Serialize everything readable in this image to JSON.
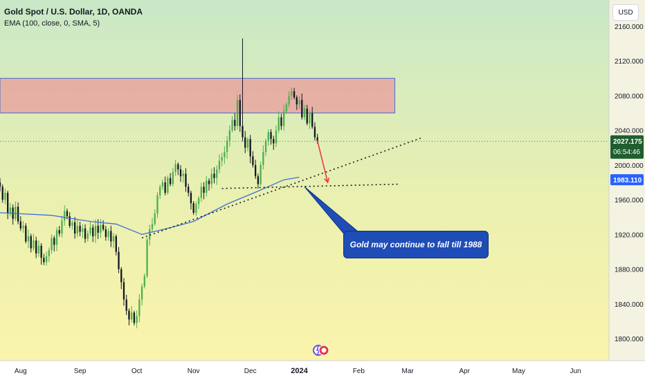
{
  "header": {
    "symbol_title": "Gold Spot / U.S. Dollar, 1D, OANDA",
    "indicator": "EMA (100, close, 0, SMA, 5)"
  },
  "currency_button": "USD",
  "annotation": {
    "text": "Gold may continue to fall till 1988"
  },
  "colors": {
    "up": "#26a69a",
    "up_body": "#4caf50",
    "down": "#131722",
    "ema": "#3e6fd6",
    "resistance_fill": "#e8a6a0",
    "resistance_border": "#3e6fd6",
    "arrow": "#f23645",
    "price_tag": "#1f5f2f",
    "ema_tag": "#2962ff"
  },
  "chart_data": {
    "type": "candlestick",
    "title": "Gold Spot / U.S. Dollar, 1D, OANDA",
    "ylim": [
      1780,
      2180
    ],
    "y_ticks": [
      1800,
      1840,
      1880,
      1920,
      1960,
      2000,
      2040,
      2080,
      2120,
      2160
    ],
    "y_tick_labels": [
      "1800.000",
      "1840.000",
      "1880.000",
      "1920.000",
      "1960.000",
      "2000.000",
      "2040.000",
      "2080.000",
      "2120.000",
      "2160.000"
    ],
    "x_ticks": [
      "Aug",
      "Sep",
      "Oct",
      "Nov",
      "Dec",
      "2024",
      "Feb",
      "Mar",
      "Apr",
      "May",
      "Jun"
    ],
    "x_tick_positions": [
      8,
      31,
      53,
      75,
      97,
      116,
      139,
      158,
      180,
      201,
      223
    ],
    "x_range": [
      0,
      236
    ],
    "last_index": 123,
    "closes": [
      1975,
      1960,
      1968,
      1945,
      1951,
      1938,
      1952,
      1935,
      1927,
      1930,
      1912,
      1918,
      1904,
      1913,
      1898,
      1907,
      1893,
      1888,
      1895,
      1902,
      1916,
      1908,
      1925,
      1921,
      1936,
      1947,
      1941,
      1930,
      1934,
      1921,
      1930,
      1923,
      1927,
      1915,
      1921,
      1928,
      1918,
      1930,
      1922,
      1931,
      1926,
      1917,
      1924,
      1912,
      1918,
      1900,
      1880,
      1865,
      1845,
      1832,
      1822,
      1830,
      1818,
      1826,
      1845,
      1860,
      1872,
      1914,
      1926,
      1932,
      1944,
      1965,
      1975,
      1980,
      1968,
      1985,
      1978,
      1992,
      2001,
      1995,
      1987,
      1990,
      1975,
      1968,
      1956,
      1945,
      1955,
      1962,
      1975,
      1968,
      1982,
      1978,
      1990,
      1985,
      1995,
      2005,
      2009,
      2015,
      2028,
      2040,
      2052,
      2045,
      2075,
      2045,
      2032,
      2020,
      2030,
      2010,
      2000,
      1987,
      1978,
      2000,
      2015,
      2028,
      2038,
      2030,
      2025,
      2040,
      2055,
      2045,
      2062,
      2070,
      2080,
      2085,
      2078,
      2070,
      2075,
      2055,
      2065,
      2048,
      2060,
      2044,
      2032,
      2028
    ],
    "spike": {
      "index": 94,
      "high": 2146
    },
    "ema_anchors": [
      [
        0,
        1945
      ],
      [
        20,
        1942
      ],
      [
        35,
        1935
      ],
      [
        45,
        1932
      ],
      [
        55,
        1920
      ],
      [
        65,
        1927
      ],
      [
        75,
        1935
      ],
      [
        88,
        1955
      ],
      [
        100,
        1970
      ],
      [
        110,
        1983
      ],
      [
        116,
        1986
      ]
    ],
    "resistance_zone": {
      "x_start": 0,
      "x_end": 153,
      "y_low": 2060,
      "y_high": 2100
    },
    "trendlines": [
      {
        "x1": 55,
        "y1": 1916,
        "x2": 163,
        "y2": 2031
      },
      {
        "x1": 86,
        "y1": 1973,
        "x2": 155,
        "y2": 1978
      }
    ],
    "projection_arrow": {
      "x1": 123,
      "y1": 2028,
      "x2": 127,
      "y2": 1980
    },
    "callout_pointer": {
      "x": 118,
      "y": 1975
    },
    "current_price": 2027.175,
    "current_price_label": "2027.175",
    "countdown": "06:54:46",
    "ema_value": 1983.11,
    "ema_value_label": "1983.110"
  }
}
